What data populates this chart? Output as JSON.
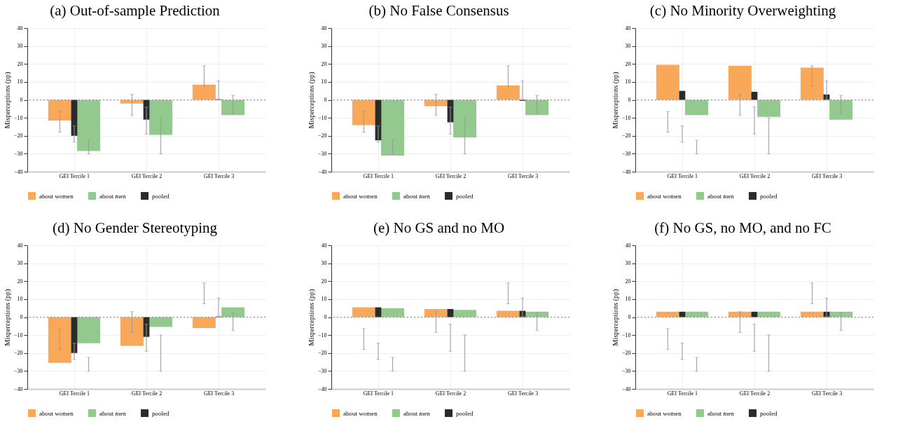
{
  "chart_data": [
    {
      "type": "bar",
      "title": "(a) Out-of-sample Prediction",
      "categories": [
        "GEI Tercile 1",
        "GEI Tercile 2",
        "GEI Tercile 3"
      ],
      "ylabel": "Misperceptions (pp)",
      "ylim": [
        -40,
        40
      ],
      "yticks": [
        -40,
        -30,
        -20,
        -10,
        0,
        10,
        20,
        30,
        40
      ],
      "grid": true,
      "legend": "bottom",
      "ref_lines": [
        {
          "axis": "y",
          "value": 0,
          "line_style": "dotted"
        }
      ],
      "series": [
        {
          "name": "about women",
          "color": "#f9a85a",
          "values": [
            -11.5,
            -2,
            8.5
          ],
          "errors": [
            [
              -18,
              -6.5
            ],
            [
              -8.5,
              3
            ],
            [
              7.5,
              19
            ]
          ]
        },
        {
          "name": "about men",
          "color": "#93c98f",
          "values": [
            -28.5,
            -19.5,
            -8.5
          ],
          "errors": [
            [
              -30,
              -22.5
            ],
            [
              -30,
              -10
            ],
            [
              -7.5,
              2.5
            ]
          ]
        },
        {
          "name": "pooled",
          "color": "#2b2b2b",
          "values": [
            -20,
            -11,
            0.3
          ],
          "errors": [
            [
              -23.5,
              -14.5
            ],
            [
              -19,
              -4
            ],
            [
              0.5,
              10.5
            ]
          ]
        }
      ]
    },
    {
      "type": "bar",
      "title": "(b) No False Consensus",
      "categories": [
        "GEI Tercile 1",
        "GEI Tercile 2",
        "GEI Tercile 3"
      ],
      "ylabel": "Misperceptions (pp)",
      "ylim": [
        -40,
        40
      ],
      "yticks": [
        -40,
        -30,
        -20,
        -10,
        0,
        10,
        20,
        30,
        40
      ],
      "grid": true,
      "legend": "bottom",
      "ref_lines": [
        {
          "axis": "y",
          "value": 0,
          "line_style": "dotted"
        }
      ],
      "series": [
        {
          "name": "about women",
          "color": "#f9a85a",
          "values": [
            -14,
            -3.5,
            8
          ],
          "errors": [
            [
              -18,
              -6.5
            ],
            [
              -8.5,
              3
            ],
            [
              7.5,
              19
            ]
          ]
        },
        {
          "name": "about men",
          "color": "#93c98f",
          "values": [
            -31,
            -21,
            -8.5
          ],
          "errors": [
            [
              -30,
              -22.5
            ],
            [
              -30,
              -10
            ],
            [
              -7.5,
              2.5
            ]
          ]
        },
        {
          "name": "pooled",
          "color": "#2b2b2b",
          "values": [
            -22.5,
            -12.5,
            -0.5
          ],
          "errors": [
            [
              -23.5,
              -14.5
            ],
            [
              -19,
              -4
            ],
            [
              0.5,
              10.5
            ]
          ]
        }
      ]
    },
    {
      "type": "bar",
      "title": "(c) No Minority Overweighting",
      "categories": [
        "GEI Tercile 1",
        "GEI Tercile 2",
        "GEI Tercile 3"
      ],
      "ylabel": "Misperceptions (pp)",
      "ylim": [
        -40,
        40
      ],
      "yticks": [
        -40,
        -30,
        -20,
        -10,
        0,
        10,
        20,
        30,
        40
      ],
      "grid": true,
      "legend": "bottom",
      "ref_lines": [
        {
          "axis": "y",
          "value": 0,
          "line_style": "dotted"
        }
      ],
      "series": [
        {
          "name": "about women",
          "color": "#f9a85a",
          "values": [
            19.5,
            19,
            18
          ],
          "errors": [
            [
              -18,
              -6.5
            ],
            [
              -8.5,
              3
            ],
            [
              7.5,
              19
            ]
          ]
        },
        {
          "name": "about men",
          "color": "#93c98f",
          "values": [
            -8.5,
            -9.5,
            -11
          ],
          "errors": [
            [
              -30,
              -22.5
            ],
            [
              -30,
              -10
            ],
            [
              -7.5,
              2.5
            ]
          ]
        },
        {
          "name": "pooled",
          "color": "#2b2b2b",
          "values": [
            5,
            4.5,
            3
          ],
          "errors": [
            [
              -23.5,
              -14.5
            ],
            [
              -19,
              -4
            ],
            [
              0.5,
              10.5
            ]
          ]
        }
      ]
    },
    {
      "type": "bar",
      "title": "(d) No Gender Stereotyping",
      "categories": [
        "GEI Tercile 1",
        "GEI Tercile 2",
        "GEI Tercile 3"
      ],
      "ylabel": "Misperceptions (pp)",
      "ylim": [
        -40,
        40
      ],
      "yticks": [
        -40,
        -30,
        -20,
        -10,
        0,
        10,
        20,
        30,
        40
      ],
      "grid": true,
      "legend": "bottom",
      "ref_lines": [
        {
          "axis": "y",
          "value": 0,
          "line_style": "dotted"
        }
      ],
      "series": [
        {
          "name": "about women",
          "color": "#f9a85a",
          "values": [
            -25.5,
            -16,
            -6
          ],
          "errors": [
            [
              -18,
              -6.5
            ],
            [
              -8.5,
              3
            ],
            [
              7.5,
              19
            ]
          ]
        },
        {
          "name": "about men",
          "color": "#93c98f",
          "values": [
            -14.5,
            -5.5,
            5.5
          ],
          "errors": [
            [
              -30,
              -22.5
            ],
            [
              -30,
              -10
            ],
            [
              -7.5,
              2.5
            ]
          ]
        },
        {
          "name": "pooled",
          "color": "#2b2b2b",
          "values": [
            -20,
            -11,
            0.3
          ],
          "errors": [
            [
              -23.5,
              -14.5
            ],
            [
              -19,
              -4
            ],
            [
              0.5,
              10.5
            ]
          ]
        }
      ]
    },
    {
      "type": "bar",
      "title": "(e) No GS and no MO",
      "categories": [
        "GEI Tercile 1",
        "GEI Tercile 2",
        "GEI Tercile 3"
      ],
      "ylabel": "Misperceptions (pp)",
      "ylim": [
        -40,
        40
      ],
      "yticks": [
        -40,
        -30,
        -20,
        -10,
        0,
        10,
        20,
        30,
        40
      ],
      "grid": true,
      "legend": "bottom",
      "ref_lines": [
        {
          "axis": "y",
          "value": 0,
          "line_style": "dotted"
        }
      ],
      "series": [
        {
          "name": "about women",
          "color": "#f9a85a",
          "values": [
            5.5,
            4.5,
            3.5
          ],
          "errors": [
            [
              -18,
              -6.5
            ],
            [
              -8.5,
              3
            ],
            [
              7.5,
              19
            ]
          ]
        },
        {
          "name": "about men",
          "color": "#93c98f",
          "values": [
            5,
            4,
            3
          ],
          "errors": [
            [
              -30,
              -22.5
            ],
            [
              -30,
              -10
            ],
            [
              -7.5,
              2.5
            ]
          ]
        },
        {
          "name": "pooled",
          "color": "#2b2b2b",
          "values": [
            5.5,
            4.5,
            3.5
          ],
          "errors": [
            [
              -23.5,
              -14.5
            ],
            [
              -19,
              -4
            ],
            [
              0.5,
              10.5
            ]
          ]
        }
      ]
    },
    {
      "type": "bar",
      "title": "(f) No GS, no MO, and no FC",
      "categories": [
        "GEI Tercile 1",
        "GEI Tercile 2",
        "GEI Tercile 3"
      ],
      "ylabel": "Misperceptions (pp)",
      "ylim": [
        -40,
        40
      ],
      "yticks": [
        -40,
        -30,
        -20,
        -10,
        0,
        10,
        20,
        30,
        40
      ],
      "grid": true,
      "legend": "bottom",
      "ref_lines": [
        {
          "axis": "y",
          "value": 0,
          "line_style": "dotted"
        }
      ],
      "series": [
        {
          "name": "about women",
          "color": "#f9a85a",
          "values": [
            3,
            3,
            3
          ],
          "errors": [
            [
              -18,
              -6.5
            ],
            [
              -8.5,
              3
            ],
            [
              7.5,
              19
            ]
          ]
        },
        {
          "name": "about men",
          "color": "#93c98f",
          "values": [
            3,
            3,
            3
          ],
          "errors": [
            [
              -30,
              -22.5
            ],
            [
              -30,
              -10
            ],
            [
              -7.5,
              2.5
            ]
          ]
        },
        {
          "name": "pooled",
          "color": "#2b2b2b",
          "values": [
            3,
            3,
            3
          ],
          "errors": [
            [
              -23.5,
              -14.5
            ],
            [
              -19,
              -4
            ],
            [
              0.5,
              10.5
            ]
          ]
        }
      ]
    }
  ]
}
